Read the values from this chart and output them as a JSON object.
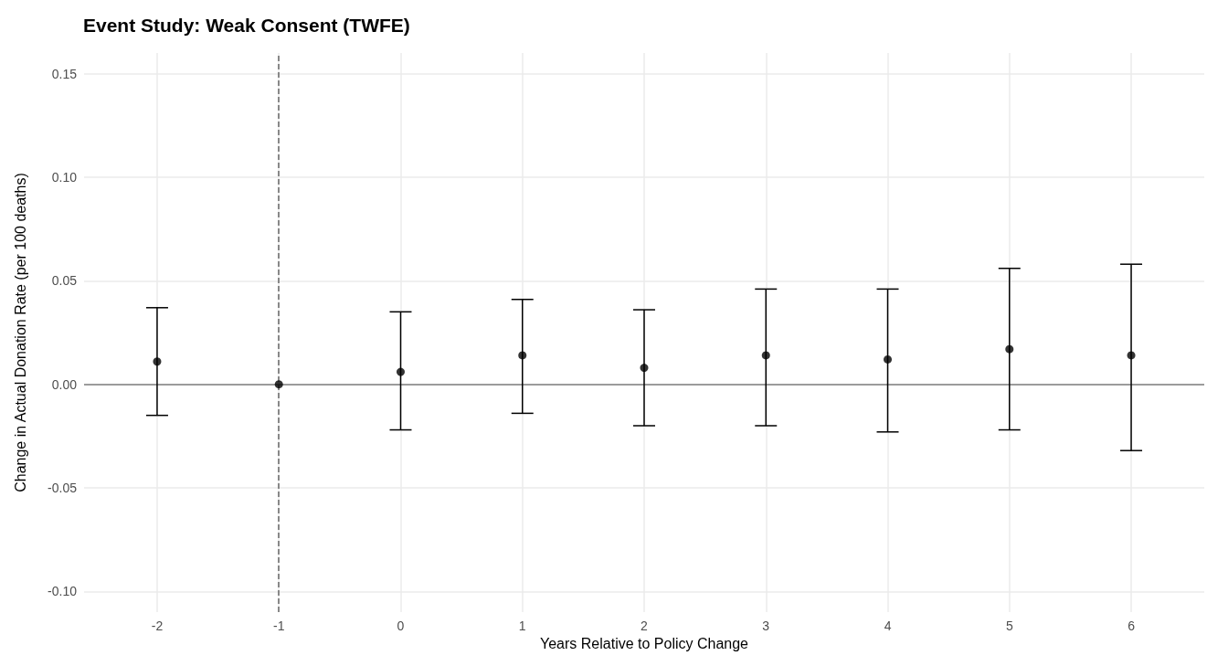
{
  "chart_data": {
    "type": "scatter",
    "title": "Event Study: Weak Consent (TWFE)",
    "xlabel": "Years Relative to Policy Change",
    "ylabel": "Change in Actual Donation Rate (per 100 deaths)",
    "x": [
      -2,
      -1,
      0,
      1,
      2,
      3,
      4,
      5,
      6
    ],
    "series": [
      {
        "color": "#000000",
        "values": [
          0.011,
          0,
          0.006,
          0.014,
          0.008,
          0.014,
          0.012,
          0.017,
          0.014
        ],
        "errors": [
          [
            -0.015,
            0.037
          ],
          null,
          [
            -0.022,
            0.035
          ],
          [
            -0.014,
            0.041
          ],
          [
            -0.02,
            0.036
          ],
          [
            -0.02,
            0.046
          ],
          [
            -0.023,
            0.046
          ],
          [
            -0.022,
            0.056
          ],
          [
            -0.032,
            0.058
          ]
        ]
      }
    ],
    "xlim": [
      -2.6,
      6.6
    ],
    "xticks": [
      -2,
      -1,
      0,
      1,
      2,
      3,
      4,
      5,
      6
    ],
    "ylim": [
      -0.11,
      0.16
    ],
    "yticks": [
      {
        "value": -0.1,
        "label": "-0.10"
      },
      -0.05,
      {
        "value": 0,
        "label": "0.00"
      },
      0.05,
      {
        "value": 0.1,
        "label": "0.10"
      },
      0.15
    ],
    "ref_lines": [
      {
        "axis": "x",
        "value": -1,
        "color": "#666666",
        "line_style": "dashed"
      },
      {
        "axis": "y",
        "value": 0,
        "color": "#7f7f7f",
        "line_style": "solid"
      }
    ],
    "grid": true,
    "marker": "circle"
  }
}
